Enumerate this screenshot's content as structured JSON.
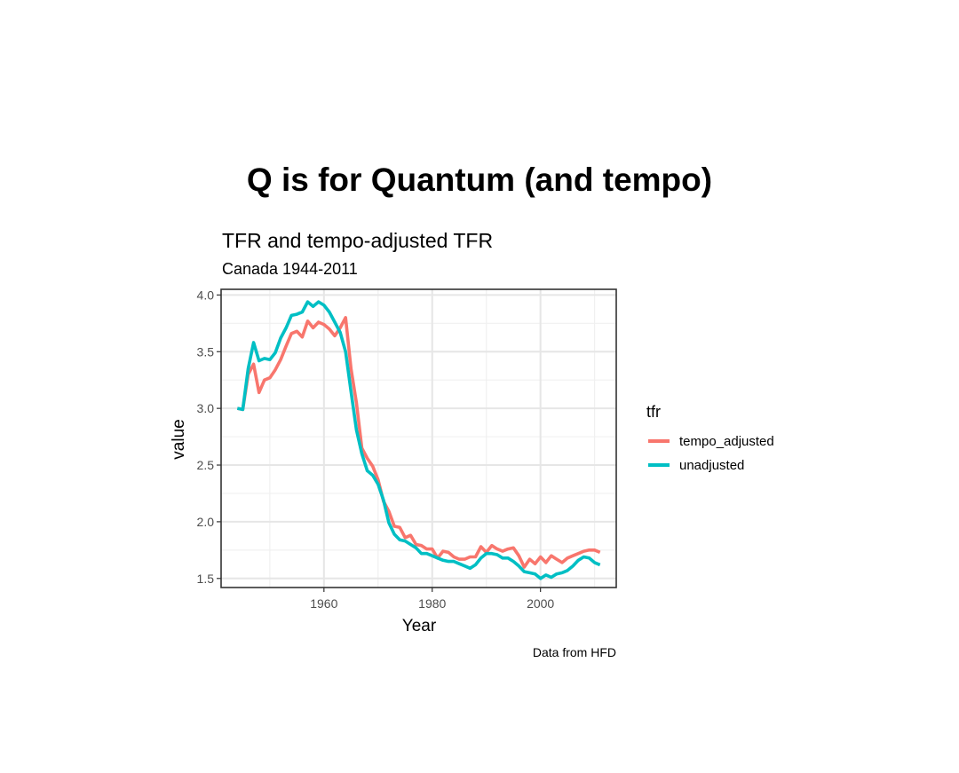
{
  "page": {
    "title": "Q is for Quantum (and tempo)"
  },
  "chart_data": {
    "type": "line",
    "title": "TFR and tempo-adjusted TFR",
    "subtitle": "Canada 1944-2011",
    "caption": "Data from HFD",
    "xlabel": "Year",
    "ylabel": "value",
    "xlim": [
      1941,
      2014
    ],
    "ylim": [
      1.42,
      4.05
    ],
    "x_ticks": [
      1960,
      1980,
      2000
    ],
    "x_tick_labels": [
      "1960",
      "1980",
      "2000"
    ],
    "y_ticks": [
      1.5,
      2.0,
      2.5,
      3.0,
      3.5,
      4.0
    ],
    "y_tick_labels": [
      "1.5",
      "2.0",
      "2.5",
      "3.0",
      "3.5",
      "4.0"
    ],
    "grid": true,
    "legend_title": "tfr",
    "legend_position": "right",
    "x": [
      1944,
      1945,
      1946,
      1947,
      1948,
      1949,
      1950,
      1951,
      1952,
      1953,
      1954,
      1955,
      1956,
      1957,
      1958,
      1959,
      1960,
      1961,
      1962,
      1963,
      1964,
      1965,
      1966,
      1967,
      1968,
      1969,
      1970,
      1971,
      1972,
      1973,
      1974,
      1975,
      1976,
      1977,
      1978,
      1979,
      1980,
      1981,
      1982,
      1983,
      1984,
      1985,
      1986,
      1987,
      1988,
      1989,
      1990,
      1991,
      1992,
      1993,
      1994,
      1995,
      1996,
      1997,
      1998,
      1999,
      2000,
      2001,
      2002,
      2003,
      2004,
      2005,
      2006,
      2007,
      2008,
      2009,
      2010,
      2011
    ],
    "series": [
      {
        "name": "tempo_adjusted",
        "color": "#F8766D",
        "values": [
          3.0,
          2.99,
          3.3,
          3.39,
          3.14,
          3.25,
          3.27,
          3.34,
          3.43,
          3.55,
          3.66,
          3.68,
          3.63,
          3.77,
          3.71,
          3.76,
          3.74,
          3.7,
          3.64,
          3.71,
          3.8,
          3.35,
          3.05,
          2.65,
          2.56,
          2.49,
          2.37,
          2.18,
          2.09,
          1.96,
          1.95,
          1.86,
          1.88,
          1.8,
          1.79,
          1.76,
          1.76,
          1.68,
          1.74,
          1.73,
          1.69,
          1.67,
          1.67,
          1.69,
          1.69,
          1.78,
          1.73,
          1.79,
          1.76,
          1.74,
          1.76,
          1.77,
          1.7,
          1.6,
          1.67,
          1.63,
          1.69,
          1.64,
          1.7,
          1.67,
          1.64,
          1.68,
          1.7,
          1.72,
          1.74,
          1.75,
          1.75,
          1.73
        ]
      },
      {
        "name": "unadjusted",
        "color": "#00BFC4",
        "values": [
          3.0,
          2.99,
          3.35,
          3.58,
          3.42,
          3.44,
          3.43,
          3.49,
          3.62,
          3.71,
          3.82,
          3.83,
          3.85,
          3.94,
          3.9,
          3.94,
          3.91,
          3.85,
          3.76,
          3.67,
          3.5,
          3.15,
          2.81,
          2.6,
          2.45,
          2.41,
          2.33,
          2.19,
          1.99,
          1.89,
          1.84,
          1.83,
          1.8,
          1.77,
          1.72,
          1.72,
          1.7,
          1.68,
          1.66,
          1.65,
          1.65,
          1.63,
          1.61,
          1.59,
          1.62,
          1.68,
          1.72,
          1.72,
          1.71,
          1.68,
          1.68,
          1.65,
          1.61,
          1.56,
          1.55,
          1.54,
          1.5,
          1.53,
          1.51,
          1.54,
          1.55,
          1.57,
          1.61,
          1.66,
          1.69,
          1.68,
          1.64,
          1.62
        ]
      }
    ]
  }
}
